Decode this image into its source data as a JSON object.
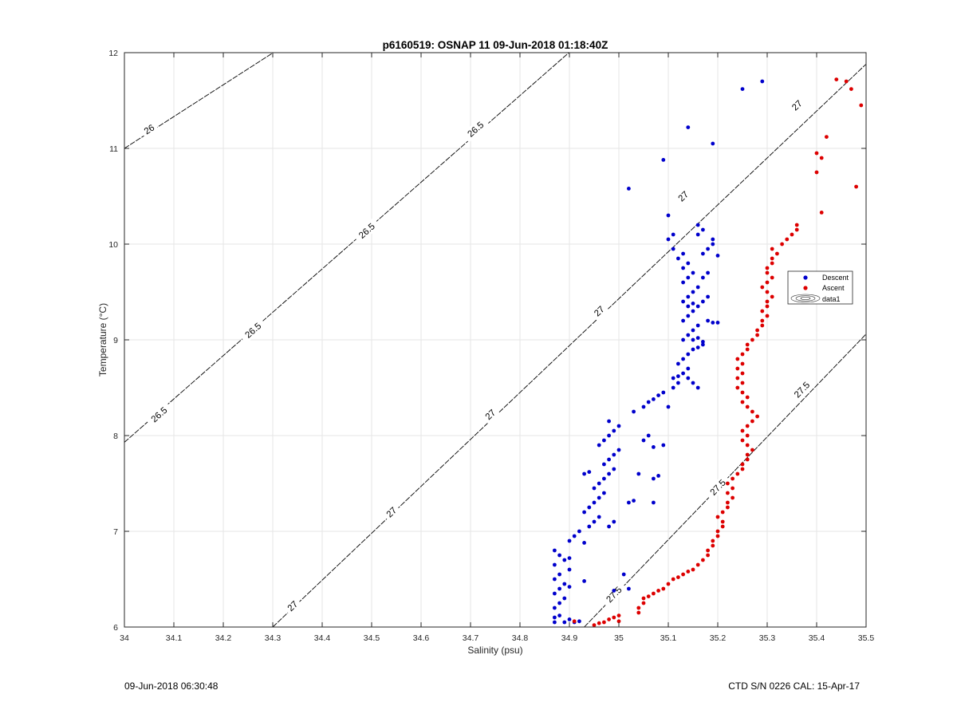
{
  "chart_data": {
    "type": "scatter",
    "title": "p6160519: OSNAP 11 09-Jun-2018 01:18:40Z",
    "xlabel": "Salinity (psu)",
    "ylabel": "Temperature (°C)",
    "xlim": [
      34,
      35.5
    ],
    "ylim": [
      6,
      12
    ],
    "xticks": [
      34,
      34.1,
      34.2,
      34.3,
      34.4,
      34.5,
      34.6,
      34.7,
      34.8,
      34.9,
      35,
      35.1,
      35.2,
      35.3,
      35.4,
      35.5
    ],
    "xtick_labels": [
      "34",
      "34.1",
      "34.2",
      "34.3",
      "34.4",
      "34.5",
      "34.6",
      "34.7",
      "34.8",
      "34.9",
      "35",
      "35.1",
      "35.2",
      "35.3",
      "35.4",
      "35.5"
    ],
    "yticks": [
      6,
      7,
      8,
      9,
      10,
      11,
      12
    ],
    "ytick_labels": [
      "6",
      "7",
      "8",
      "9",
      "10",
      "11",
      "12"
    ],
    "grid": true,
    "legend_position": "right",
    "legend": [
      "Descent",
      "Ascent",
      "data1"
    ],
    "contours": [
      {
        "label": "26",
        "points": [
          [
            34,
            11.0
          ],
          [
            34.301,
            12.0
          ]
        ],
        "label_positions": [
          [
            34.05,
            11.2
          ]
        ]
      },
      {
        "label": "26.5",
        "points": [
          [
            34,
            7.93
          ],
          [
            34.899,
            12.0
          ]
        ],
        "label_positions": [
          [
            34.07,
            8.22
          ],
          [
            34.26,
            9.1
          ],
          [
            34.49,
            10.14
          ],
          [
            34.71,
            11.2
          ]
        ]
      },
      {
        "label": "27",
        "points": [
          [
            34.3,
            6.0
          ],
          [
            35.5,
            11.88
          ]
        ],
        "label_positions": [
          [
            34.34,
            6.22
          ],
          [
            34.54,
            7.2
          ],
          [
            34.74,
            8.22
          ],
          [
            34.96,
            9.3
          ],
          [
            35.13,
            10.5
          ],
          [
            35.36,
            11.45
          ]
        ]
      },
      {
        "label": "27.5",
        "points": [
          [
            34.93,
            6.0
          ],
          [
            35.5,
            9.06
          ]
        ],
        "label_positions": [
          [
            34.99,
            6.34
          ],
          [
            35.2,
            7.46
          ],
          [
            35.37,
            8.48
          ]
        ]
      }
    ],
    "series": [
      {
        "name": "Descent",
        "color": "#0000cc",
        "points": [
          [
            34.87,
            6.05
          ],
          [
            34.87,
            6.1
          ],
          [
            34.88,
            6.12
          ],
          [
            34.89,
            6.05
          ],
          [
            34.9,
            6.08
          ],
          [
            34.87,
            6.2
          ],
          [
            34.88,
            6.25
          ],
          [
            34.89,
            6.3
          ],
          [
            34.87,
            6.35
          ],
          [
            34.88,
            6.4
          ],
          [
            34.9,
            6.42
          ],
          [
            34.89,
            6.45
          ],
          [
            34.87,
            6.5
          ],
          [
            34.88,
            6.55
          ],
          [
            34.9,
            6.6
          ],
          [
            34.87,
            6.65
          ],
          [
            34.89,
            6.7
          ],
          [
            34.88,
            6.75
          ],
          [
            34.87,
            6.8
          ],
          [
            34.9,
            6.72
          ],
          [
            34.91,
            6.05
          ],
          [
            34.92,
            6.06
          ],
          [
            34.93,
            6.48
          ],
          [
            34.99,
            6.38
          ],
          [
            35.02,
            6.4
          ],
          [
            35.01,
            6.55
          ],
          [
            34.9,
            6.9
          ],
          [
            34.91,
            6.95
          ],
          [
            34.92,
            7.0
          ],
          [
            34.93,
            6.88
          ],
          [
            34.94,
            7.05
          ],
          [
            34.95,
            7.1
          ],
          [
            34.96,
            7.15
          ],
          [
            34.93,
            7.2
          ],
          [
            34.94,
            7.25
          ],
          [
            34.95,
            7.3
          ],
          [
            34.96,
            7.35
          ],
          [
            34.97,
            7.4
          ],
          [
            34.98,
            7.05
          ],
          [
            34.99,
            7.1
          ],
          [
            34.95,
            7.45
          ],
          [
            34.96,
            7.5
          ],
          [
            34.97,
            7.55
          ],
          [
            34.98,
            7.6
          ],
          [
            34.99,
            7.65
          ],
          [
            34.93,
            7.6
          ],
          [
            34.94,
            7.62
          ],
          [
            34.97,
            7.7
          ],
          [
            34.98,
            7.75
          ],
          [
            34.99,
            7.8
          ],
          [
            35.0,
            7.85
          ],
          [
            34.96,
            7.9
          ],
          [
            34.97,
            7.95
          ],
          [
            34.98,
            8.0
          ],
          [
            34.99,
            8.05
          ],
          [
            35.0,
            8.1
          ],
          [
            34.98,
            8.15
          ],
          [
            35.02,
            7.3
          ],
          [
            35.03,
            7.32
          ],
          [
            35.04,
            7.6
          ],
          [
            35.05,
            7.95
          ],
          [
            35.06,
            8.0
          ],
          [
            35.07,
            7.3
          ],
          [
            35.07,
            7.55
          ],
          [
            35.08,
            7.58
          ],
          [
            35.09,
            7.9
          ],
          [
            35.07,
            7.88
          ],
          [
            35.03,
            8.25
          ],
          [
            35.05,
            8.3
          ],
          [
            35.06,
            8.35
          ],
          [
            35.07,
            8.38
          ],
          [
            35.08,
            8.42
          ],
          [
            35.09,
            8.45
          ],
          [
            35.1,
            8.3
          ],
          [
            35.11,
            8.5
          ],
          [
            35.12,
            8.55
          ],
          [
            35.11,
            8.6
          ],
          [
            35.12,
            8.62
          ],
          [
            35.13,
            8.65
          ],
          [
            35.14,
            8.7
          ],
          [
            35.12,
            8.75
          ],
          [
            35.13,
            8.8
          ],
          [
            35.14,
            8.85
          ],
          [
            35.15,
            8.9
          ],
          [
            35.16,
            8.92
          ],
          [
            35.17,
            8.95
          ],
          [
            35.13,
            9.0
          ],
          [
            35.14,
            9.05
          ],
          [
            35.15,
            9.1
          ],
          [
            35.16,
            9.15
          ],
          [
            35.13,
            9.2
          ],
          [
            35.14,
            9.25
          ],
          [
            35.15,
            9.3
          ],
          [
            35.16,
            9.35
          ],
          [
            35.13,
            9.4
          ],
          [
            35.14,
            9.45
          ],
          [
            35.15,
            9.5
          ],
          [
            35.16,
            9.55
          ],
          [
            35.13,
            9.6
          ],
          [
            35.14,
            9.65
          ],
          [
            35.15,
            9.7
          ],
          [
            35.13,
            9.75
          ],
          [
            35.14,
            9.8
          ],
          [
            35.12,
            9.85
          ],
          [
            35.13,
            9.9
          ],
          [
            35.11,
            9.95
          ],
          [
            35.1,
            10.05
          ],
          [
            35.11,
            10.1
          ],
          [
            35.18,
            9.2
          ],
          [
            35.19,
            9.18
          ],
          [
            35.2,
            9.18
          ],
          [
            35.17,
            9.4
          ],
          [
            35.18,
            9.45
          ],
          [
            35.17,
            9.9
          ],
          [
            35.18,
            9.95
          ],
          [
            35.19,
            10.0
          ],
          [
            35.2,
            9.88
          ],
          [
            35.16,
            10.1
          ],
          [
            35.17,
            10.15
          ],
          [
            35.16,
            10.2
          ],
          [
            35.19,
            10.05
          ],
          [
            35.1,
            10.3
          ],
          [
            35.02,
            10.58
          ],
          [
            35.09,
            10.88
          ],
          [
            35.14,
            11.22
          ],
          [
            35.19,
            11.05
          ],
          [
            35.25,
            11.62
          ],
          [
            35.29,
            11.7
          ],
          [
            35.16,
            8.5
          ],
          [
            35.15,
            8.55
          ],
          [
            35.14,
            8.6
          ],
          [
            35.17,
            9.65
          ],
          [
            35.18,
            9.7
          ],
          [
            35.15,
            9.0
          ],
          [
            35.16,
            9.02
          ],
          [
            35.17,
            8.98
          ],
          [
            35.14,
            9.35
          ],
          [
            35.15,
            9.38
          ]
        ]
      },
      {
        "name": "Ascent",
        "color": "#dd0000",
        "points": [
          [
            34.91,
            6.06
          ],
          [
            34.95,
            6.02
          ],
          [
            34.96,
            6.04
          ],
          [
            34.97,
            6.05
          ],
          [
            34.98,
            6.08
          ],
          [
            34.99,
            6.1
          ],
          [
            35.0,
            6.12
          ],
          [
            35.0,
            6.06
          ],
          [
            35.04,
            6.15
          ],
          [
            35.04,
            6.2
          ],
          [
            35.05,
            6.25
          ],
          [
            35.05,
            6.3
          ],
          [
            35.06,
            6.32
          ],
          [
            35.07,
            6.35
          ],
          [
            35.08,
            6.38
          ],
          [
            35.09,
            6.4
          ],
          [
            35.1,
            6.45
          ],
          [
            35.11,
            6.5
          ],
          [
            35.12,
            6.52
          ],
          [
            35.13,
            6.55
          ],
          [
            35.14,
            6.58
          ],
          [
            35.15,
            6.6
          ],
          [
            35.16,
            6.65
          ],
          [
            35.17,
            6.7
          ],
          [
            35.18,
            6.75
          ],
          [
            35.18,
            6.8
          ],
          [
            35.19,
            6.85
          ],
          [
            35.19,
            6.9
          ],
          [
            35.2,
            6.95
          ],
          [
            35.2,
            7.0
          ],
          [
            35.21,
            7.05
          ],
          [
            35.21,
            7.1
          ],
          [
            35.2,
            7.15
          ],
          [
            35.21,
            7.2
          ],
          [
            35.22,
            7.25
          ],
          [
            35.22,
            7.3
          ],
          [
            35.23,
            7.35
          ],
          [
            35.22,
            7.4
          ],
          [
            35.23,
            7.45
          ],
          [
            35.22,
            7.5
          ],
          [
            35.23,
            7.55
          ],
          [
            35.24,
            7.6
          ],
          [
            35.25,
            7.65
          ],
          [
            35.25,
            7.7
          ],
          [
            35.26,
            7.75
          ],
          [
            35.26,
            7.8
          ],
          [
            35.27,
            7.85
          ],
          [
            35.26,
            7.9
          ],
          [
            35.25,
            7.95
          ],
          [
            35.26,
            8.0
          ],
          [
            35.25,
            8.05
          ],
          [
            35.26,
            8.1
          ],
          [
            35.27,
            8.15
          ],
          [
            35.28,
            8.2
          ],
          [
            35.27,
            8.25
          ],
          [
            35.26,
            8.3
          ],
          [
            35.25,
            8.35
          ],
          [
            35.26,
            8.4
          ],
          [
            35.25,
            8.45
          ],
          [
            35.24,
            8.5
          ],
          [
            35.25,
            8.55
          ],
          [
            35.24,
            8.6
          ],
          [
            35.25,
            8.65
          ],
          [
            35.24,
            8.7
          ],
          [
            35.25,
            8.75
          ],
          [
            35.24,
            8.8
          ],
          [
            35.25,
            8.85
          ],
          [
            35.26,
            8.9
          ],
          [
            35.26,
            8.95
          ],
          [
            35.27,
            9.0
          ],
          [
            35.28,
            9.05
          ],
          [
            35.28,
            9.1
          ],
          [
            35.29,
            9.15
          ],
          [
            35.29,
            9.2
          ],
          [
            35.3,
            9.25
          ],
          [
            35.29,
            9.3
          ],
          [
            35.3,
            9.35
          ],
          [
            35.3,
            9.4
          ],
          [
            35.31,
            9.45
          ],
          [
            35.3,
            9.5
          ],
          [
            35.29,
            9.55
          ],
          [
            35.3,
            9.6
          ],
          [
            35.31,
            9.65
          ],
          [
            35.3,
            9.7
          ],
          [
            35.3,
            9.75
          ],
          [
            35.31,
            9.8
          ],
          [
            35.31,
            9.85
          ],
          [
            35.32,
            9.9
          ],
          [
            35.31,
            9.95
          ],
          [
            35.33,
            10.0
          ],
          [
            35.34,
            10.05
          ],
          [
            35.35,
            10.1
          ],
          [
            35.36,
            10.15
          ],
          [
            35.36,
            10.2
          ],
          [
            35.41,
            10.33
          ],
          [
            35.48,
            10.6
          ],
          [
            35.4,
            10.75
          ],
          [
            35.41,
            10.9
          ],
          [
            35.4,
            10.95
          ],
          [
            35.42,
            11.12
          ],
          [
            35.49,
            11.45
          ],
          [
            35.47,
            11.62
          ],
          [
            35.44,
            11.72
          ],
          [
            35.46,
            11.7
          ]
        ]
      }
    ]
  },
  "footer": {
    "left": "09-Jun-2018 06:30:48",
    "right": "CTD S/N 0226  CAL: 15-Apr-17"
  },
  "legend_box": {
    "descent_label": "Descent",
    "ascent_label": "Ascent",
    "data1_label": "data1"
  }
}
